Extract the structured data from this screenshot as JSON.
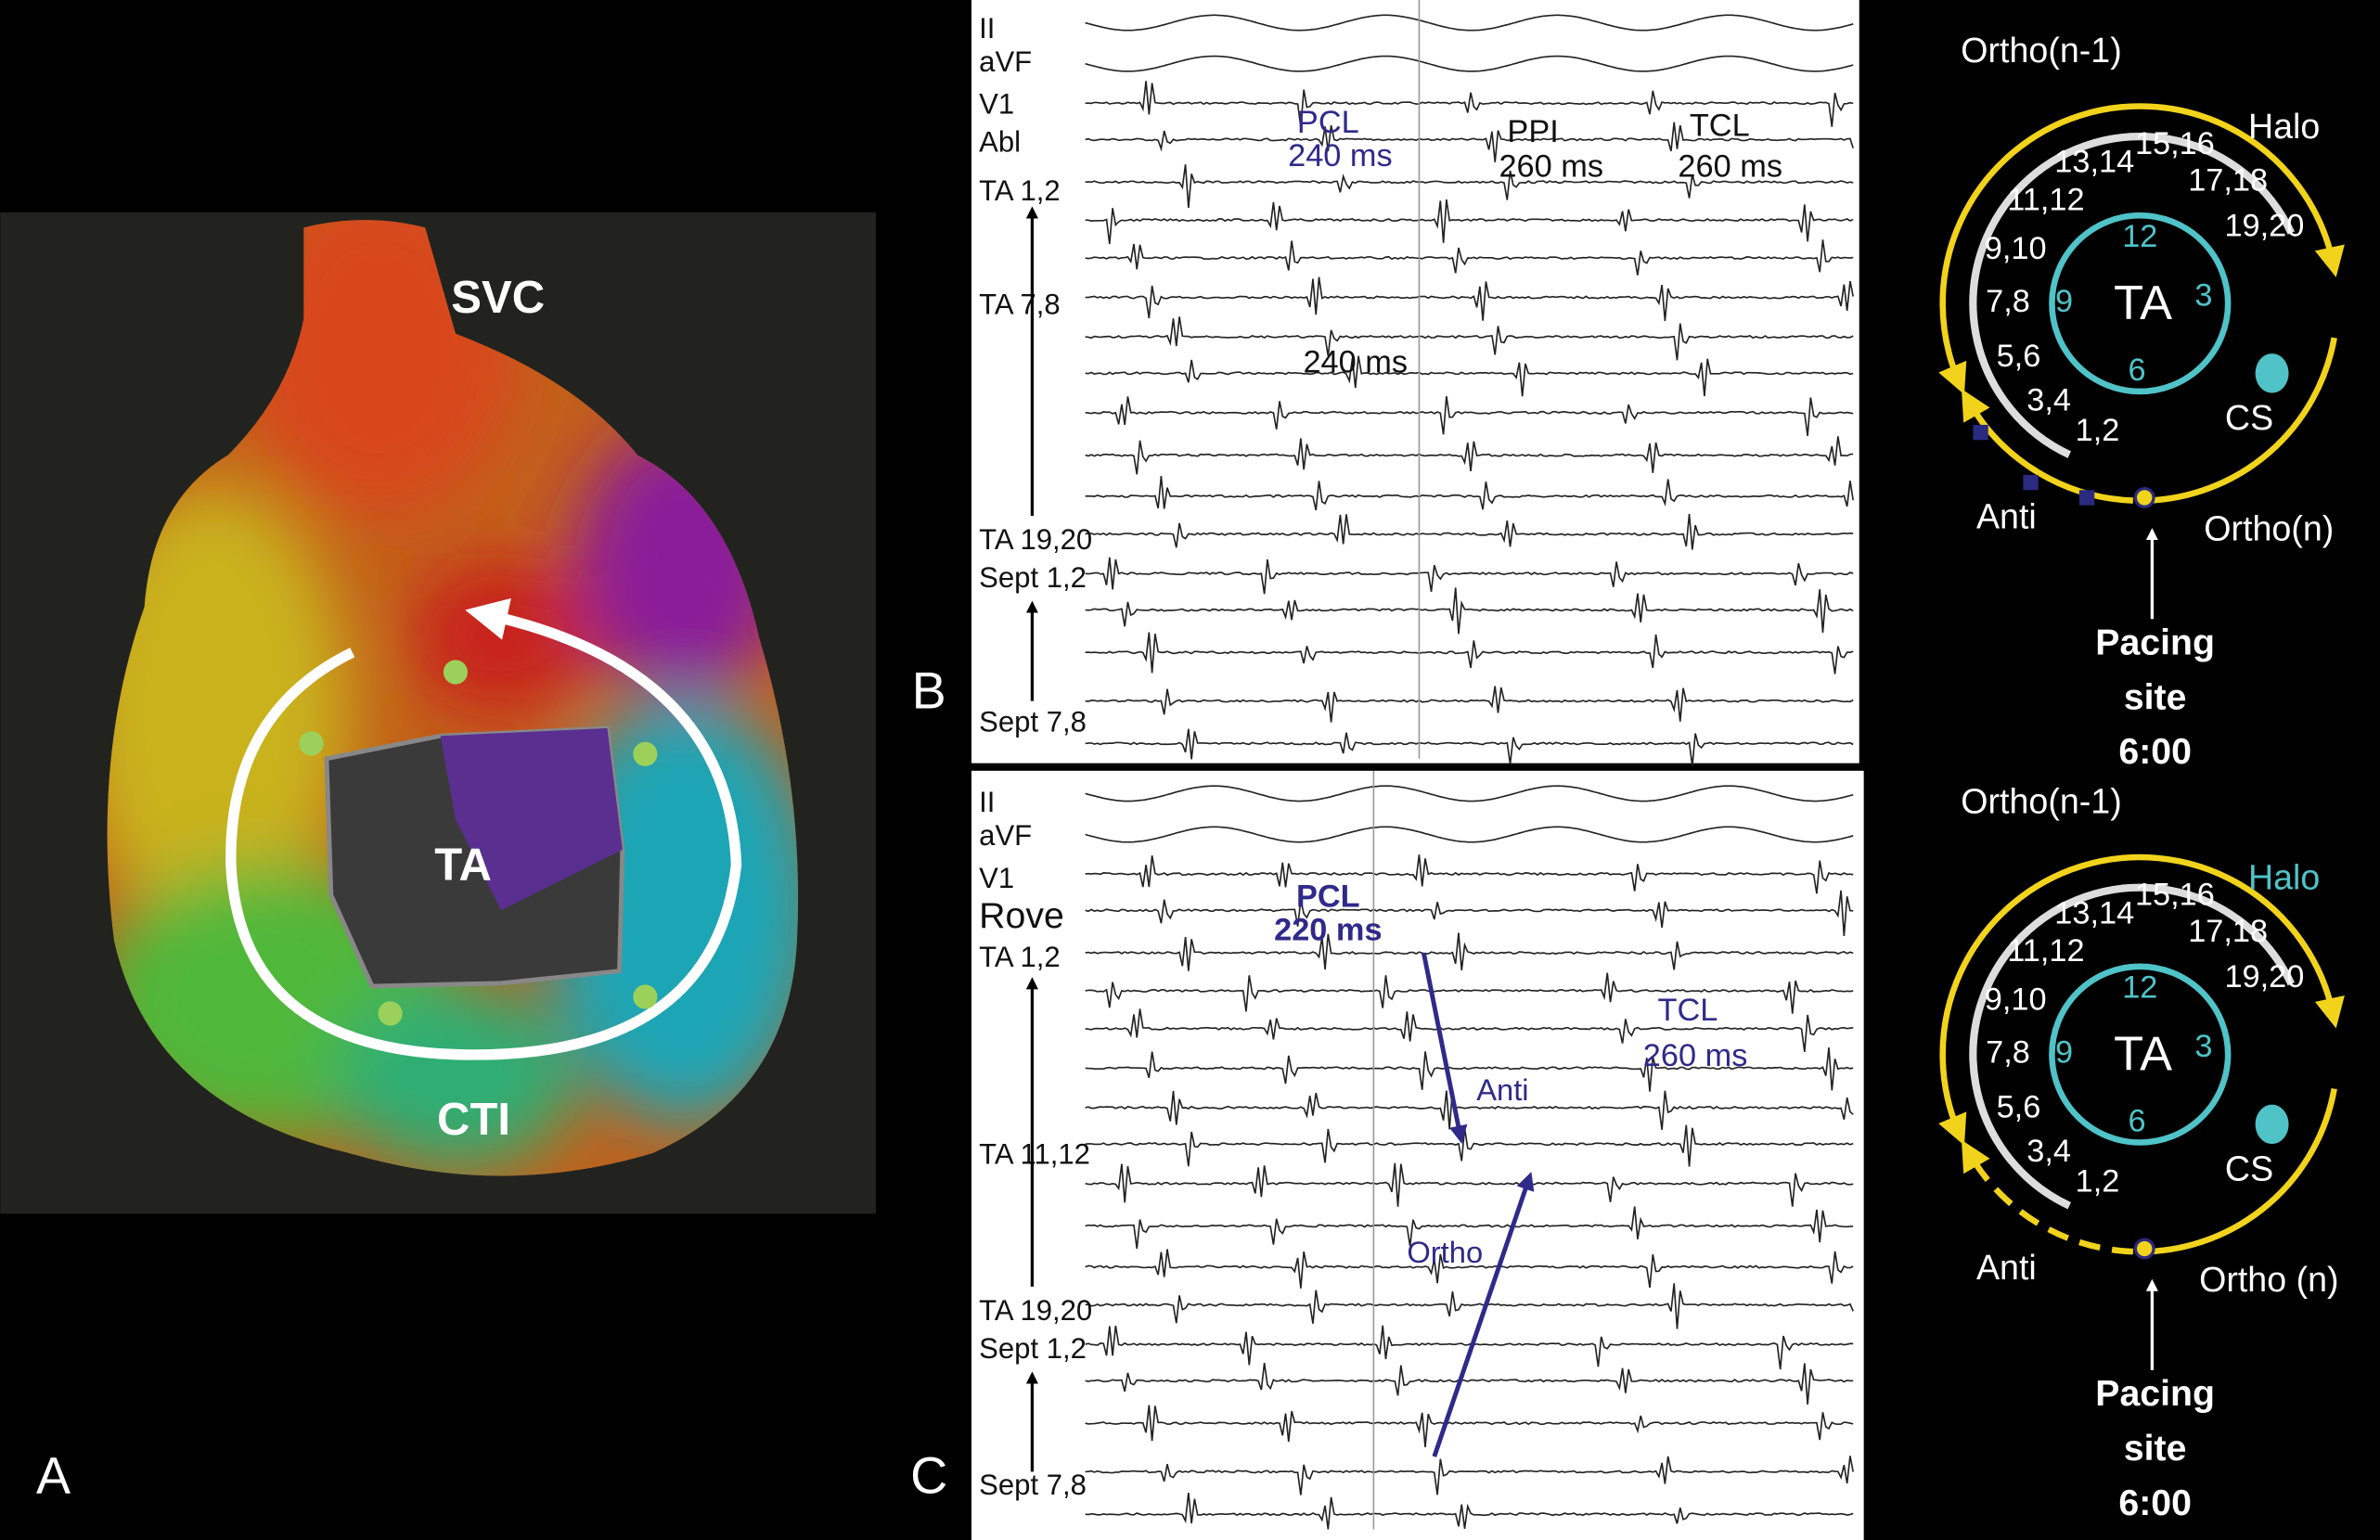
{
  "panel_a": {
    "label": "A",
    "structures": {
      "svc": "SVC",
      "ta": "TA",
      "cti": "CTI"
    }
  },
  "panel_b": {
    "label": "B",
    "channels": [
      "II",
      "aVF",
      "V1",
      "Abl",
      "TA 1,2",
      "TA 7,8",
      "TA 19,20",
      "Sept 1,2",
      "Sept 7,8"
    ],
    "annotations": {
      "pcl": "PCL",
      "pcl_value": "240 ms",
      "ppi": "PPI",
      "ppi_value": "260 ms",
      "tcl": "TCL",
      "tcl_value": "260 ms",
      "interval": "240 ms"
    }
  },
  "panel_c": {
    "label": "C",
    "channels": [
      "II",
      "aVF",
      "V1",
      "Rove",
      "TA 1,2",
      "TA 11,12",
      "TA 19,20",
      "Sept 1,2",
      "Sept 7,8"
    ],
    "annotations": {
      "pcl": "PCL",
      "pcl_value": "220 ms",
      "tcl": "TCL",
      "tcl_value": "260 ms",
      "anti": "Anti",
      "ortho": "Ortho"
    }
  },
  "diagram_b": {
    "ortho_prev": "Ortho(n-1)",
    "halo": "Halo",
    "electrodes": [
      "1,2",
      "3,4",
      "5,6",
      "7,8",
      "9,10",
      "11,12",
      "13,14",
      "15,16",
      "17,18",
      "19,20"
    ],
    "clock": [
      "12",
      "3",
      "6",
      "9"
    ],
    "center": "TA",
    "cs": "CS",
    "anti": "Anti",
    "ortho": "Ortho(n)",
    "pacing": [
      "Pacing",
      "site",
      "6:00"
    ]
  },
  "diagram_c": {
    "ortho_prev": "Ortho(n-1)",
    "halo": "Halo",
    "electrodes": [
      "1,2",
      "3,4",
      "5,6",
      "7,8",
      "9,10",
      "11,12",
      "13,14",
      "15,16",
      "17,18",
      "19,20"
    ],
    "clock": [
      "12",
      "3",
      "6",
      "9"
    ],
    "center": "TA",
    "cs": "CS",
    "anti": "Anti",
    "ortho": "Ortho (n)",
    "pacing": [
      "Pacing",
      "site",
      "6:00"
    ]
  }
}
